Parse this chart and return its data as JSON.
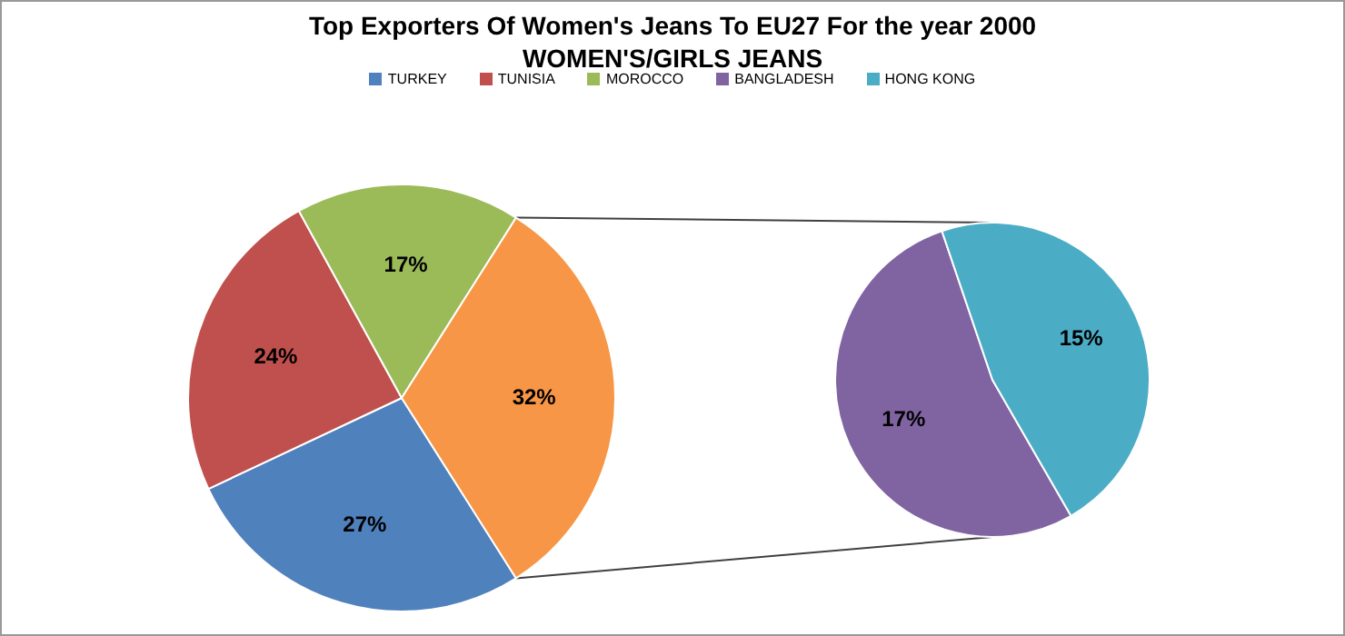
{
  "chart_data": [
    {
      "type": "pie",
      "title": "Top Exporters Of Women's Jeans To EU27 For the year 2000",
      "subtitle": "WOMEN'S/GIRLS  JEANS",
      "legend": "top",
      "categories": [
        "TURKEY",
        "TUNISIA",
        "MOROCCO",
        null
      ],
      "values": [
        27,
        24,
        17,
        32
      ],
      "colors": [
        "#4f81bd",
        "#c0504d",
        "#9bbb59",
        "#f79646"
      ],
      "value_labels": [
        "27%",
        "24%",
        "17%",
        "32%"
      ]
    },
    {
      "type": "pie",
      "legend": "top",
      "categories": [
        "BANGLADESH",
        "HONG KONG"
      ],
      "values": [
        17,
        15
      ],
      "colors": [
        "#8064a2",
        "#4bacc6"
      ],
      "value_labels": [
        "17%",
        "15%"
      ]
    }
  ]
}
